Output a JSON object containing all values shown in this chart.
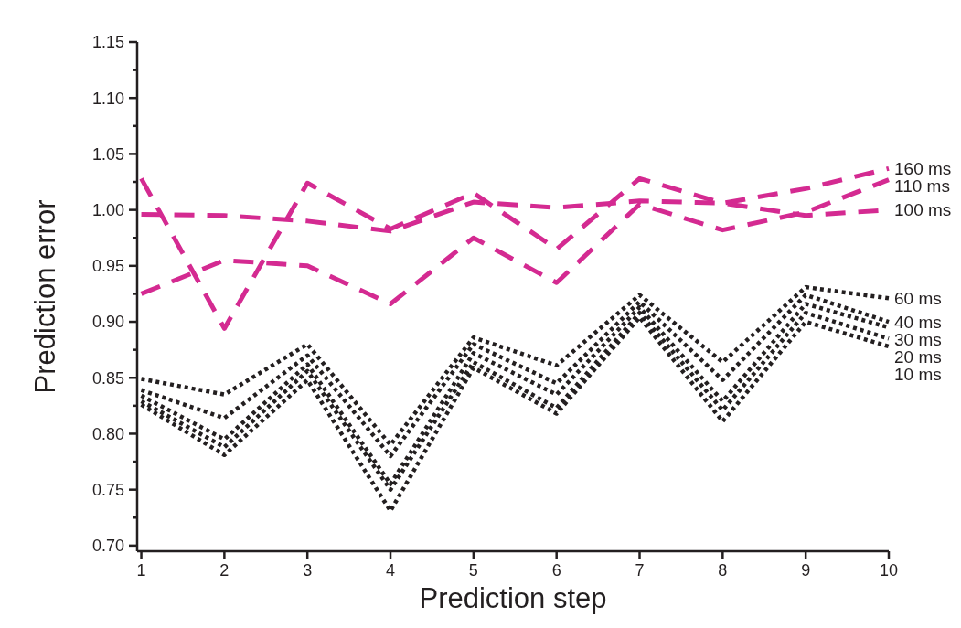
{
  "chart_data": {
    "type": "line",
    "xlabel": "Prediction step",
    "ylabel": "Prediction error",
    "x": [
      1,
      2,
      3,
      4,
      5,
      6,
      7,
      8,
      9,
      10
    ],
    "xlim": [
      0.95,
      10
    ],
    "xticks": [
      1,
      2,
      3,
      4,
      5,
      6,
      7,
      8,
      9,
      10
    ],
    "ylim": [
      0.695,
      1.15
    ],
    "yticks": [
      {
        "value": 0.7,
        "label": "0.70"
      },
      {
        "value": 0.725,
        "label": null
      },
      {
        "value": 0.75,
        "label": "0.75"
      },
      {
        "value": 0.775,
        "label": null
      },
      {
        "value": 0.8,
        "label": "0.80"
      },
      {
        "value": 0.825,
        "label": null
      },
      {
        "value": 0.85,
        "label": "0.85"
      },
      {
        "value": 0.875,
        "label": null
      },
      {
        "value": 0.9,
        "label": "0.90"
      },
      {
        "value": 0.925,
        "label": null
      },
      {
        "value": 0.95,
        "label": "0.95"
      },
      {
        "value": 0.975,
        "label": null
      },
      {
        "value": 1.0,
        "label": "1.00"
      },
      {
        "value": 1.025,
        "label": null
      },
      {
        "value": 1.05,
        "label": "1.05"
      },
      {
        "value": 1.075,
        "label": null
      },
      {
        "value": 1.1,
        "label": "1.10"
      },
      {
        "value": 1.125,
        "label": null
      },
      {
        "value": 1.15,
        "label": "1.15"
      }
    ],
    "grid": false,
    "legend": false,
    "marker": "none",
    "series": [
      {
        "name": "160 ms",
        "color": "#d42a91",
        "line_style": "dashed",
        "values": [
          1.028,
          0.894,
          1.024,
          0.983,
          1.015,
          0.965,
          1.028,
          1.006,
          1.019,
          1.037
        ]
      },
      {
        "name": "110 ms",
        "color": "#d42a91",
        "line_style": "dashed",
        "values": [
          0.925,
          0.955,
          0.95,
          0.916,
          0.975,
          0.935,
          1.005,
          0.982,
          0.998,
          1.027
        ]
      },
      {
        "name": "100 ms",
        "color": "#d42a91",
        "line_style": "dashed",
        "values": [
          0.996,
          0.995,
          0.99,
          0.981,
          1.007,
          1.002,
          1.008,
          1.006,
          0.995,
          1.0
        ]
      },
      {
        "name": "60 ms",
        "color": "#231f20",
        "line_style": "dotted",
        "values": [
          0.849,
          0.835,
          0.88,
          0.79,
          0.886,
          0.861,
          0.924,
          0.864,
          0.931,
          0.921
        ]
      },
      {
        "name": "40 ms",
        "color": "#231f20",
        "line_style": "dotted",
        "values": [
          0.839,
          0.814,
          0.87,
          0.78,
          0.88,
          0.845,
          0.918,
          0.848,
          0.924,
          0.9
        ]
      },
      {
        "name": "30 ms",
        "color": "#231f20",
        "line_style": "dotted",
        "values": [
          0.834,
          0.795,
          0.862,
          0.755,
          0.872,
          0.835,
          0.913,
          0.829,
          0.916,
          0.895
        ]
      },
      {
        "name": "20 ms",
        "color": "#231f20",
        "line_style": "dotted",
        "values": [
          0.829,
          0.788,
          0.856,
          0.75,
          0.864,
          0.823,
          0.908,
          0.821,
          0.908,
          0.885
        ]
      },
      {
        "name": "10 ms",
        "color": "#231f20",
        "line_style": "dotted",
        "values": [
          0.826,
          0.781,
          0.848,
          0.731,
          0.859,
          0.818,
          0.904,
          0.811,
          0.9,
          0.878
        ]
      }
    ]
  }
}
